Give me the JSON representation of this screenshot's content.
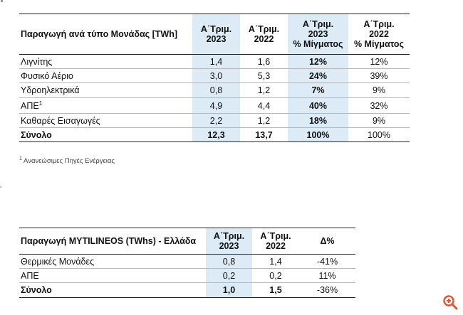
{
  "table1": {
    "header": {
      "label": "Παραγωγή ανά τύπο Μονάδας [TWh]",
      "col1": [
        "Α΄Τριμ.",
        "2023"
      ],
      "col2": [
        "Α΄Τριμ.",
        "2022"
      ],
      "col3": [
        "Α΄Τριμ.",
        "2023",
        "% Μίγματος"
      ],
      "col4": [
        "Α΄Τριμ.",
        "2022",
        "% Μίγματος"
      ]
    },
    "rows": [
      {
        "name": "Λιγνίτης",
        "sup": "",
        "v1": "1,4",
        "v2": "1,6",
        "v3": "12%",
        "v4": "12%"
      },
      {
        "name": "Φυσικό Αέριο",
        "sup": "",
        "v1": "3,0",
        "v2": "5,3",
        "v3": "24%",
        "v4": "39%"
      },
      {
        "name": "Υδροηλεκτρικά",
        "sup": "",
        "v1": "0,8",
        "v2": "1,2",
        "v3": "7%",
        "v4": "9%"
      },
      {
        "name": "ΑΠΕ",
        "sup": "1",
        "v1": "4,9",
        "v2": "4,4",
        "v3": "40%",
        "v4": "32%"
      },
      {
        "name": "Καθαρές Εισαγωγές",
        "sup": "",
        "v1": "2,2",
        "v2": "1,2",
        "v3": "18%",
        "v4": "9%"
      }
    ],
    "total": {
      "name": "Σύνολο",
      "v1": "12,3",
      "v2": "13,7",
      "v3": "100%",
      "v4": "100%"
    }
  },
  "footnote": {
    "mark": "1",
    "text": "Ανανεώσιμες Πηγές Ενέργειας"
  },
  "table2": {
    "header": {
      "label": "Παραγωγή MYTILINEOS (TWhs) - Ελλάδα",
      "col1": [
        "Α΄Τριμ.",
        "2023"
      ],
      "col2": [
        "Α΄Τριμ.",
        "2022"
      ],
      "col3": "Δ%"
    },
    "rows": [
      {
        "name": "Θερμικές Μονάδες",
        "v1": "0,8",
        "v2": "1,4",
        "v3": "-41%"
      },
      {
        "name": "ΑΠΕ",
        "v1": "0,2",
        "v2": "0,2",
        "v3": "11%"
      }
    ],
    "total": {
      "name": "Σύνολο",
      "v1": "1,0",
      "v2": "1,5",
      "v3": "-36%"
    }
  },
  "zoom_icon": {
    "name": "zoom-in-icon",
    "color": "#e8542f"
  }
}
